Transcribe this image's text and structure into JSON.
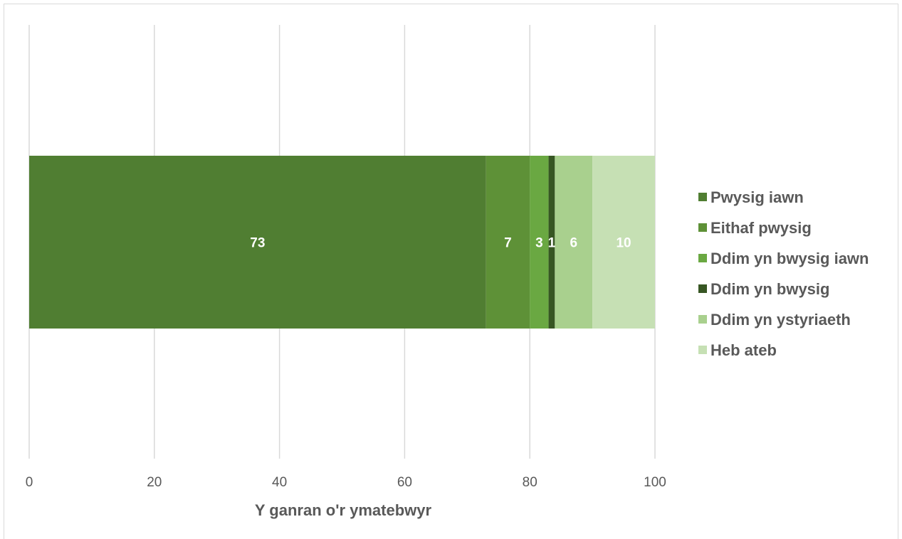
{
  "chart_data": {
    "type": "bar",
    "orientation": "horizontal",
    "stacked": true,
    "categories": [
      ""
    ],
    "series": [
      {
        "name": "Pwysig iawn",
        "values": [
          73
        ],
        "color": "#507e32",
        "label_color": "#ffffff"
      },
      {
        "name": "Eithaf pwysig",
        "values": [
          7
        ],
        "color": "#5e9137",
        "label_color": "#ffffff"
      },
      {
        "name": "Ddim yn bwysig iawn",
        "values": [
          3
        ],
        "color": "#6aa842",
        "label_color": "#ffffff"
      },
      {
        "name": "Ddim yn bwysig",
        "values": [
          1
        ],
        "color": "#375623",
        "label_color": "#ffffff"
      },
      {
        "name": "Ddim yn ystyriaeth",
        "values": [
          6
        ],
        "color": "#a9d08e",
        "label_color": "#ffffff"
      },
      {
        "name": "Heb ateb",
        "values": [
          10
        ],
        "color": "#c6e0b4",
        "label_color": "#ffffff"
      }
    ],
    "xlabel": "Y ganran o'r ymatebwyr",
    "xlim": [
      0,
      100
    ],
    "xticks": [
      0,
      20,
      40,
      60,
      80,
      100
    ],
    "xtick_labels": [
      "0",
      "20",
      "40",
      "60",
      "80",
      "100"
    ],
    "grid": "vertical",
    "legend_position": "right"
  }
}
